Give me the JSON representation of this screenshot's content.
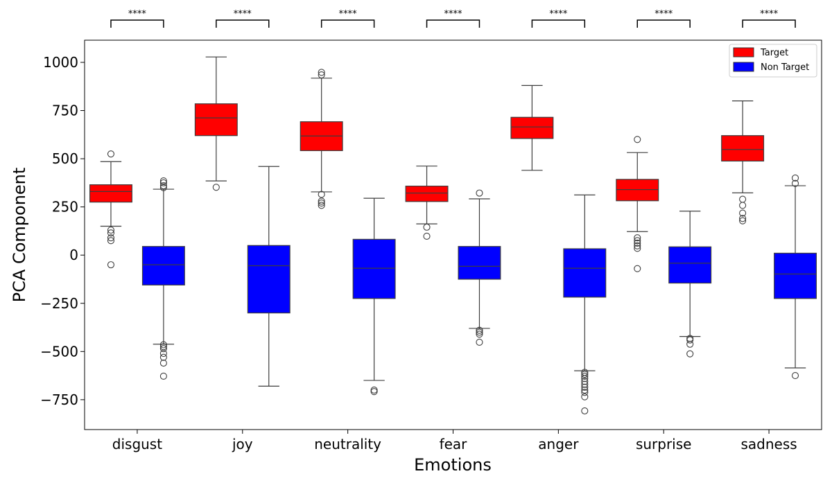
{
  "chart_data": {
    "type": "box",
    "xlabel": "Emotions",
    "ylabel": "PCA Component",
    "ylim": [
      -905,
      1115
    ],
    "yticks": [
      1000,
      750,
      500,
      250,
      0,
      -250,
      -500,
      -750
    ],
    "ytick_labels": [
      "1000",
      "750",
      "500",
      "250",
      "0",
      "−250",
      "−500",
      "−750"
    ],
    "categories": [
      "disgust",
      "joy",
      "neutrality",
      "fear",
      "anger",
      "surprise",
      "sadness"
    ],
    "series": [
      {
        "name": "Target",
        "color": "#ff0000",
        "boxes": [
          {
            "whisker_low": 150,
            "q1": 275,
            "median": 330,
            "q3": 365,
            "whisker_high": 485,
            "outliers": [
              525,
              130,
              115,
              90,
              75,
              -50
            ]
          },
          {
            "whisker_low": 385,
            "q1": 620,
            "median": 712,
            "q3": 785,
            "whisker_high": 1028,
            "outliers": [
              352
            ]
          },
          {
            "whisker_low": 328,
            "q1": 542,
            "median": 618,
            "q3": 692,
            "whisker_high": 918,
            "outliers": [
              948,
              935,
              315,
              280,
              270,
              258
            ]
          },
          {
            "whisker_low": 162,
            "q1": 278,
            "median": 322,
            "q3": 358,
            "whisker_high": 462,
            "outliers": [
              145,
              98
            ]
          },
          {
            "whisker_low": 440,
            "q1": 605,
            "median": 665,
            "q3": 715,
            "whisker_high": 880,
            "outliers": []
          },
          {
            "whisker_low": 122,
            "q1": 282,
            "median": 340,
            "q3": 393,
            "whisker_high": 532,
            "outliers": [
              600,
              90,
              75,
              62,
              48,
              35,
              -70
            ]
          },
          {
            "whisker_low": 323,
            "q1": 488,
            "median": 548,
            "q3": 620,
            "whisker_high": 800,
            "outliers": [
              290,
              258,
              218,
              190,
              178
            ]
          }
        ]
      },
      {
        "name": "Non Target",
        "color": "#0000ff",
        "boxes": [
          {
            "whisker_low": -462,
            "q1": -155,
            "median": -50,
            "q3": 45,
            "whisker_high": 342,
            "outliers": [
              385,
              375,
              360,
              350,
              -465,
              -475,
              -485,
              -510,
              -530,
              -560,
              -628
            ]
          },
          {
            "whisker_low": -680,
            "q1": -300,
            "median": -55,
            "q3": 50,
            "whisker_high": 460,
            "outliers": []
          },
          {
            "whisker_low": -650,
            "q1": -225,
            "median": -68,
            "q3": 82,
            "whisker_high": 295,
            "outliers": [
              -700,
              -708
            ]
          },
          {
            "whisker_low": -380,
            "q1": -125,
            "median": -58,
            "q3": 45,
            "whisker_high": 292,
            "outliers": [
              322,
              -390,
              -400,
              -410,
              -452
            ]
          },
          {
            "whisker_low": -600,
            "q1": -218,
            "median": -68,
            "q3": 33,
            "whisker_high": 312,
            "outliers": [
              -608,
              -618,
              -628,
              -640,
              -655,
              -670,
              -685,
              -700,
              -712,
              -735,
              -808
            ]
          },
          {
            "whisker_low": -422,
            "q1": -145,
            "median": -42,
            "q3": 43,
            "whisker_high": 228,
            "outliers": [
              -432,
              -440,
              -462,
              -512
            ]
          },
          {
            "whisker_low": -585,
            "q1": -225,
            "median": -98,
            "q3": 10,
            "whisker_high": 360,
            "outliers": [
              400,
              372,
              -625
            ]
          }
        ]
      }
    ],
    "significance": [
      "****",
      "****",
      "****",
      "****",
      "****",
      "****",
      "****"
    ],
    "legend": {
      "position": "top-right",
      "entries": [
        "Target",
        "Non Target"
      ]
    }
  }
}
